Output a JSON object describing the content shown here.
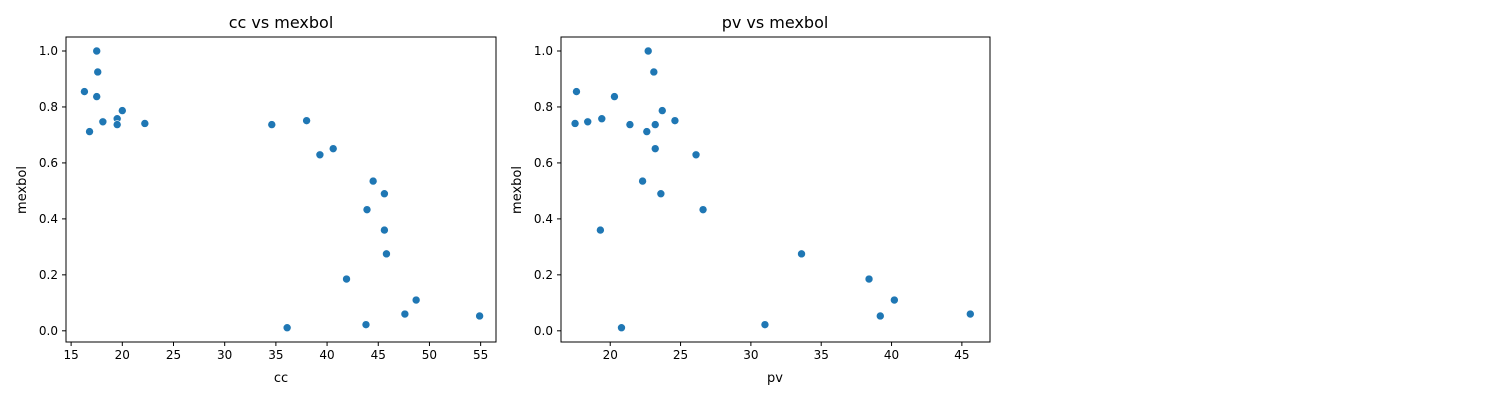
{
  "chart_data": [
    {
      "type": "scatter",
      "title": "cc vs mexbol",
      "xlabel": "cc",
      "ylabel": "mexbol",
      "xlim": [
        14.5,
        56.5
      ],
      "ylim": [
        -0.04,
        1.05
      ],
      "xticks": [
        "15",
        "20",
        "25",
        "30",
        "35",
        "40",
        "45",
        "50",
        "55"
      ],
      "yticks": [
        "0.0",
        "0.2",
        "0.4",
        "0.6",
        "0.8",
        "1.0"
      ],
      "color": "#1f77b4",
      "points": [
        [
          17.5,
          1.0
        ],
        [
          17.6,
          0.925
        ],
        [
          16.3,
          0.855
        ],
        [
          17.5,
          0.837
        ],
        [
          20.0,
          0.787
        ],
        [
          19.5,
          0.758
        ],
        [
          18.1,
          0.747
        ],
        [
          22.2,
          0.741
        ],
        [
          19.5,
          0.737
        ],
        [
          16.8,
          0.712
        ],
        [
          34.6,
          0.737
        ],
        [
          38.0,
          0.751
        ],
        [
          40.6,
          0.651
        ],
        [
          39.3,
          0.629
        ],
        [
          44.5,
          0.535
        ],
        [
          45.6,
          0.49
        ],
        [
          43.9,
          0.433
        ],
        [
          45.6,
          0.36
        ],
        [
          45.8,
          0.275
        ],
        [
          41.9,
          0.185
        ],
        [
          48.7,
          0.11
        ],
        [
          47.6,
          0.06
        ],
        [
          54.9,
          0.053
        ],
        [
          43.8,
          0.022
        ],
        [
          36.1,
          0.011
        ]
      ]
    },
    {
      "type": "scatter",
      "title": "pv vs mexbol",
      "xlabel": "pv",
      "ylabel": "mexbol",
      "xlim": [
        16.5,
        47.0
      ],
      "ylim": [
        -0.04,
        1.05
      ],
      "xticks": [
        "20",
        "25",
        "30",
        "35",
        "40",
        "45"
      ],
      "yticks": [
        "0.0",
        "0.2",
        "0.4",
        "0.6",
        "0.8",
        "1.0"
      ],
      "color": "#1f77b4",
      "points": [
        [
          22.7,
          1.0
        ],
        [
          23.1,
          0.925
        ],
        [
          17.6,
          0.855
        ],
        [
          20.3,
          0.837
        ],
        [
          23.7,
          0.787
        ],
        [
          19.4,
          0.758
        ],
        [
          24.6,
          0.751
        ],
        [
          18.4,
          0.747
        ],
        [
          17.5,
          0.741
        ],
        [
          21.4,
          0.737
        ],
        [
          23.2,
          0.737
        ],
        [
          22.6,
          0.712
        ],
        [
          23.2,
          0.651
        ],
        [
          26.1,
          0.629
        ],
        [
          22.3,
          0.535
        ],
        [
          23.6,
          0.49
        ],
        [
          26.6,
          0.433
        ],
        [
          19.3,
          0.36
        ],
        [
          33.6,
          0.275
        ],
        [
          38.4,
          0.185
        ],
        [
          40.2,
          0.11
        ],
        [
          45.6,
          0.06
        ],
        [
          39.2,
          0.053
        ],
        [
          31.0,
          0.022
        ],
        [
          20.8,
          0.011
        ]
      ]
    }
  ]
}
